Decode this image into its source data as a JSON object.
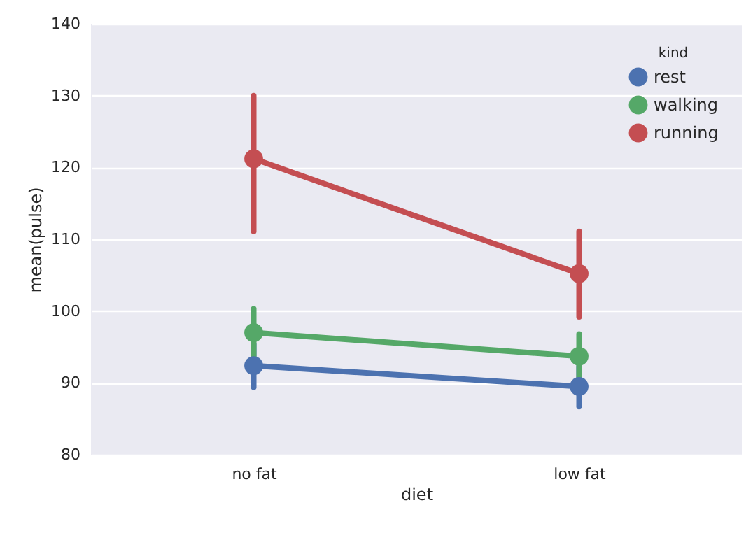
{
  "chart_data": {
    "type": "line",
    "xlabel": "diet",
    "ylabel": "mean(pulse)",
    "legend_title": "kind",
    "categories": [
      "no fat",
      "low fat"
    ],
    "series": [
      {
        "name": "rest",
        "color": "#4c72b0",
        "values": [
          92.4,
          89.5
        ],
        "errors": [
          [
            89.4,
            95.4
          ],
          [
            86.7,
            92.3
          ]
        ]
      },
      {
        "name": "walking",
        "color": "#55a868",
        "values": [
          97.0,
          93.7
        ],
        "errors": [
          [
            93.3,
            100.3
          ],
          [
            90.6,
            96.8
          ]
        ]
      },
      {
        "name": "running",
        "color": "#c44e52",
        "values": [
          121.2,
          105.2
        ],
        "errors": [
          [
            111.1,
            130.0
          ],
          [
            99.2,
            111.1
          ]
        ]
      }
    ],
    "ylim": [
      80,
      140
    ],
    "yticks": [
      80,
      90,
      100,
      110,
      120,
      130,
      140
    ],
    "grid": "y",
    "legend": "top right",
    "marker": "circle",
    "line_style": "solid"
  }
}
